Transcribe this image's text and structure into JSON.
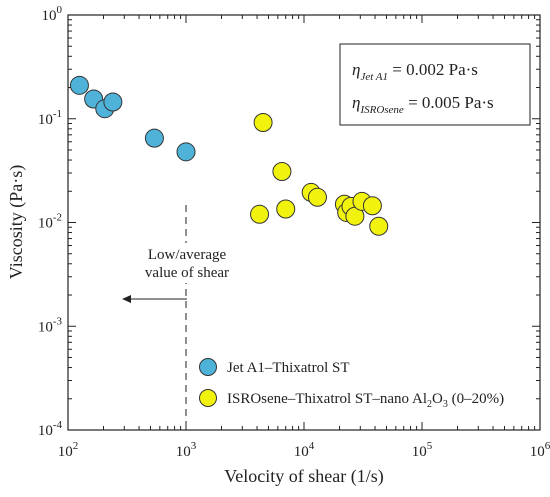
{
  "chart_data": {
    "type": "scatter",
    "xlabel": "Velocity of shear (1/s)",
    "ylabel": "Viscosity (Pa·s)",
    "x_scale": "log",
    "y_scale": "log",
    "xlim": [
      100,
      1000000
    ],
    "ylim": [
      0.0001,
      1
    ],
    "x_ticks": [
      {
        "value": 100,
        "base": "10",
        "exp": "2"
      },
      {
        "value": 1000,
        "base": "10",
        "exp": "3"
      },
      {
        "value": 10000,
        "base": "10",
        "exp": "4"
      },
      {
        "value": 100000,
        "base": "10",
        "exp": "5"
      },
      {
        "value": 1000000,
        "base": "10",
        "exp": "6"
      }
    ],
    "y_ticks": [
      {
        "value": 0.0001,
        "base": "10",
        "exp": "-4"
      },
      {
        "value": 0.001,
        "base": "10",
        "exp": "-3"
      },
      {
        "value": 0.01,
        "base": "10",
        "exp": "-2"
      },
      {
        "value": 0.1,
        "base": "10",
        "exp": "-1"
      },
      {
        "value": 1,
        "base": "10",
        "exp": "0"
      }
    ],
    "series": [
      {
        "name": "Jet A1–Thixatrol ST",
        "color": "#4fb3d9",
        "points": [
          {
            "x": 125,
            "y": 0.21
          },
          {
            "x": 165,
            "y": 0.155
          },
          {
            "x": 205,
            "y": 0.125
          },
          {
            "x": 240,
            "y": 0.145
          },
          {
            "x": 540,
            "y": 0.065
          },
          {
            "x": 1000,
            "y": 0.048
          }
        ]
      },
      {
        "name": "ISROsene–Thixatrol ST–nano Al",
        "name_sub": "2",
        "name_mid": "O",
        "name_sub2": "3",
        "name_tail": " (0–20%)",
        "color": "#f2f20f",
        "points": [
          {
            "x": 4500,
            "y": 0.092
          },
          {
            "x": 4200,
            "y": 0.012
          },
          {
            "x": 6500,
            "y": 0.031
          },
          {
            "x": 7000,
            "y": 0.0135
          },
          {
            "x": 11500,
            "y": 0.0195
          },
          {
            "x": 13000,
            "y": 0.0175
          },
          {
            "x": 22000,
            "y": 0.015
          },
          {
            "x": 23000,
            "y": 0.0125
          },
          {
            "x": 25000,
            "y": 0.0143
          },
          {
            "x": 27000,
            "y": 0.0115
          },
          {
            "x": 31000,
            "y": 0.016
          },
          {
            "x": 38000,
            "y": 0.0145
          },
          {
            "x": 43000,
            "y": 0.0092
          }
        ]
      }
    ],
    "equations": [
      {
        "lhs": "η",
        "sub": "Jet A1",
        "rhs": " = 0.002 Pa·s"
      },
      {
        "lhs": "η",
        "sub": "ISROsene",
        "rhs": " = 0.005 Pa·s"
      }
    ],
    "annotation": {
      "line1": "Low/average",
      "line2": "value of shear",
      "x": 1000
    },
    "grid": false,
    "legend_position": "bottom-right"
  }
}
